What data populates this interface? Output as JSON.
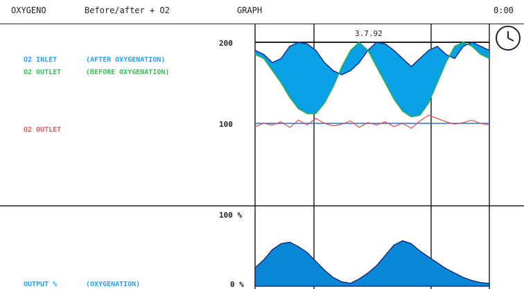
{
  "header": {
    "app": "OXYGENO",
    "mode": "Before/after + O2",
    "view": "GRAPH",
    "time": "0:00"
  },
  "chart_date": "3.7.92",
  "left_labels": {
    "inlet_line1": "O2 INLET",
    "inlet_line1_note": "(AFTER OXYGENATION)",
    "outlet_line2": "O2 OUTLET",
    "outlet_line2_note": "(BEFORE OXYGENATION)",
    "outlet_single": "O2 OUTLET",
    "output": "OUTPUT %",
    "output_note": "(OXYGENATION)"
  },
  "axes": {
    "upper_top": "200",
    "upper_mid": "100",
    "lower_top": "100 %",
    "lower_bottom": "0 %"
  },
  "colors": {
    "inlet": "#2a6fd9",
    "outlet_before": "#29b14a",
    "outlet": "#e04b4b",
    "fill": "#0aa0e6",
    "output": "#0a86d6",
    "grid": "#222222"
  },
  "chart_data": [
    {
      "type": "area",
      "title": "",
      "y_range": [
        0,
        200
      ],
      "reference_lines": [
        100,
        200
      ],
      "series": [
        {
          "name": "O2 INLET",
          "values": [
            190,
            185,
            175,
            180,
            195,
            200,
            198,
            190,
            175,
            165,
            160,
            165,
            175,
            190,
            200,
            198,
            190,
            180,
            170,
            180,
            190,
            195,
            185,
            180,
            195,
            200,
            195,
            190
          ]
        },
        {
          "name": "O2 OUTLET",
          "values": [
            185,
            180,
            165,
            150,
            132,
            118,
            112,
            112,
            125,
            145,
            170,
            190,
            200,
            190,
            170,
            150,
            130,
            115,
            108,
            110,
            125,
            150,
            175,
            195,
            200,
            195,
            185,
            180
          ]
        },
        {
          "name": "O2 OUTLET",
          "values": [
            96,
            100,
            98,
            102,
            95,
            104,
            98,
            106,
            100,
            97,
            99,
            103,
            95,
            101,
            98,
            102,
            96,
            100,
            94,
            103,
            110,
            106,
            102,
            99,
            101,
            104,
            100,
            98
          ]
        }
      ]
    },
    {
      "type": "area",
      "title": "",
      "y_range": [
        0,
        100
      ],
      "series": [
        {
          "name": "OUTPUT %",
          "values": [
            25,
            36,
            50,
            58,
            60,
            54,
            46,
            34,
            22,
            12,
            6,
            4,
            10,
            18,
            28,
            42,
            56,
            62,
            58,
            48,
            40,
            32,
            24,
            18,
            12,
            8,
            5,
            4
          ]
        }
      ]
    }
  ]
}
